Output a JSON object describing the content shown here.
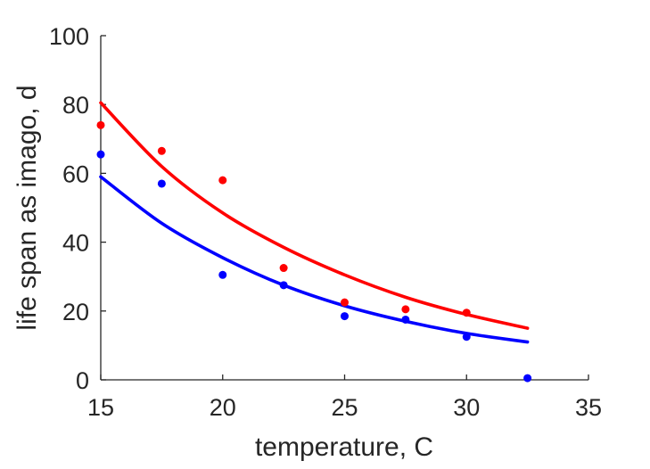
{
  "chart_data": {
    "type": "scatter",
    "title": "",
    "xlabel": "temperature, C",
    "ylabel": "life span as imago, d",
    "xlim": [
      15,
      35
    ],
    "ylim": [
      0,
      100
    ],
    "xticks": [
      "15",
      "20",
      "25",
      "30",
      "35"
    ],
    "yticks": [
      "0",
      "20",
      "40",
      "60",
      "80",
      "100"
    ],
    "grid": false,
    "legend": "none",
    "series": [
      {
        "color": "#ff0000",
        "points": [
          [
            15,
            74
          ],
          [
            17.5,
            66.5
          ],
          [
            20,
            58
          ],
          [
            22.5,
            32.5
          ],
          [
            25,
            22.5
          ],
          [
            27.5,
            20.5
          ],
          [
            30,
            19.5
          ]
        ],
        "fit": [
          [
            15,
            80.5
          ],
          [
            17.5,
            62
          ],
          [
            20,
            48.5
          ],
          [
            22.5,
            38.5
          ],
          [
            25,
            30.5
          ],
          [
            27.5,
            24
          ],
          [
            30,
            19
          ],
          [
            32.5,
            15
          ]
        ]
      },
      {
        "color": "#0000ff",
        "points": [
          [
            15,
            65.5
          ],
          [
            17.5,
            57
          ],
          [
            20,
            30.5
          ],
          [
            22.5,
            27.5
          ],
          [
            25,
            18.5
          ],
          [
            27.5,
            17.5
          ],
          [
            30,
            12.5
          ],
          [
            32.5,
            0.5
          ]
        ],
        "fit": [
          [
            15,
            59
          ],
          [
            17.5,
            45.5
          ],
          [
            20,
            35.5
          ],
          [
            22.5,
            27.5
          ],
          [
            25,
            21.5
          ],
          [
            27.5,
            17
          ],
          [
            30,
            13.5
          ],
          [
            32.5,
            11
          ]
        ]
      }
    ]
  }
}
